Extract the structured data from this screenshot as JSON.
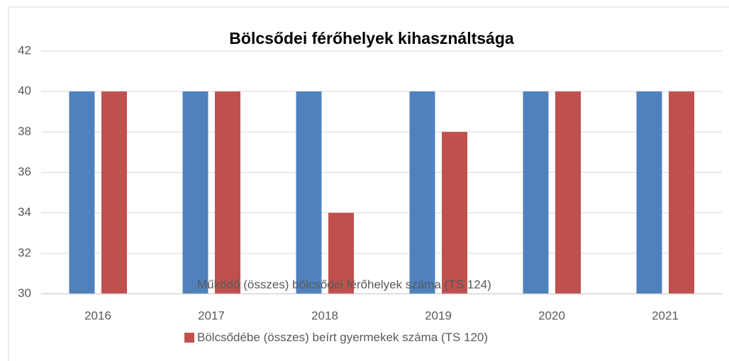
{
  "chart_data": {
    "type": "bar",
    "title": "Bölcsődei férőhelyek kihasználtsága",
    "categories": [
      "2016",
      "2017",
      "2018",
      "2019",
      "2020",
      "2021"
    ],
    "series": [
      {
        "name": "Működő (összes) bölcsődei férőhelyek száma (TS 124)",
        "color": "#4f81bd",
        "values": [
          40,
          40,
          40,
          40,
          40,
          40
        ]
      },
      {
        "name": "Bölcsődébe (összes) beírt gyermekek száma (TS 120)",
        "color": "#c0504d",
        "values": [
          40,
          40,
          34,
          38,
          40,
          40
        ]
      }
    ],
    "ylim": [
      30,
      42
    ],
    "yticks": [
      30,
      32,
      34,
      36,
      38,
      40,
      42
    ],
    "grid": true
  }
}
